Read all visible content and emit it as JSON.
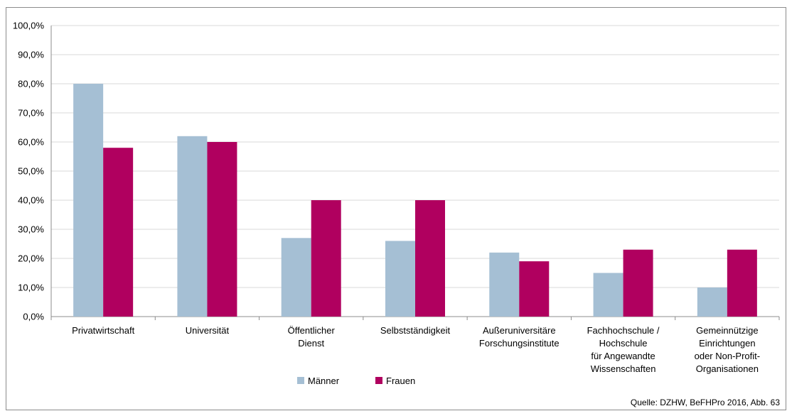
{
  "chart_data": {
    "type": "bar",
    "categories": [
      [
        "Privatwirtschaft"
      ],
      [
        "Universität"
      ],
      [
        "Öffentlicher",
        "Dienst"
      ],
      [
        "Selbstständigkeit"
      ],
      [
        "Außeruniversitäre",
        "Forschungsinstitute"
      ],
      [
        "Fachhochschule /",
        "Hochschule",
        "für Angewandte",
        "Wissenschaften"
      ],
      [
        "Gemeinnützige",
        "Einrichtungen",
        "oder Non-Profit-",
        "Organisationen"
      ]
    ],
    "series": [
      {
        "name": "Männer",
        "color": "#a5bfd4",
        "values": [
          80,
          62,
          27,
          26,
          22,
          15,
          10
        ]
      },
      {
        "name": "Frauen",
        "color": "#b0005f",
        "values": [
          58,
          60,
          40,
          40,
          19,
          23,
          23
        ]
      }
    ],
    "yticks": [
      "0,0%",
      "10,0%",
      "20,0%",
      "30,0%",
      "40,0%",
      "50,0%",
      "60,0%",
      "70,0%",
      "80,0%",
      "90,0%",
      "100,0%"
    ],
    "ylim": [
      0,
      100
    ],
    "grid": true,
    "legend": "bottom",
    "source": "Quelle: DZHW, BeFHPro 2016, Abb. 63"
  }
}
